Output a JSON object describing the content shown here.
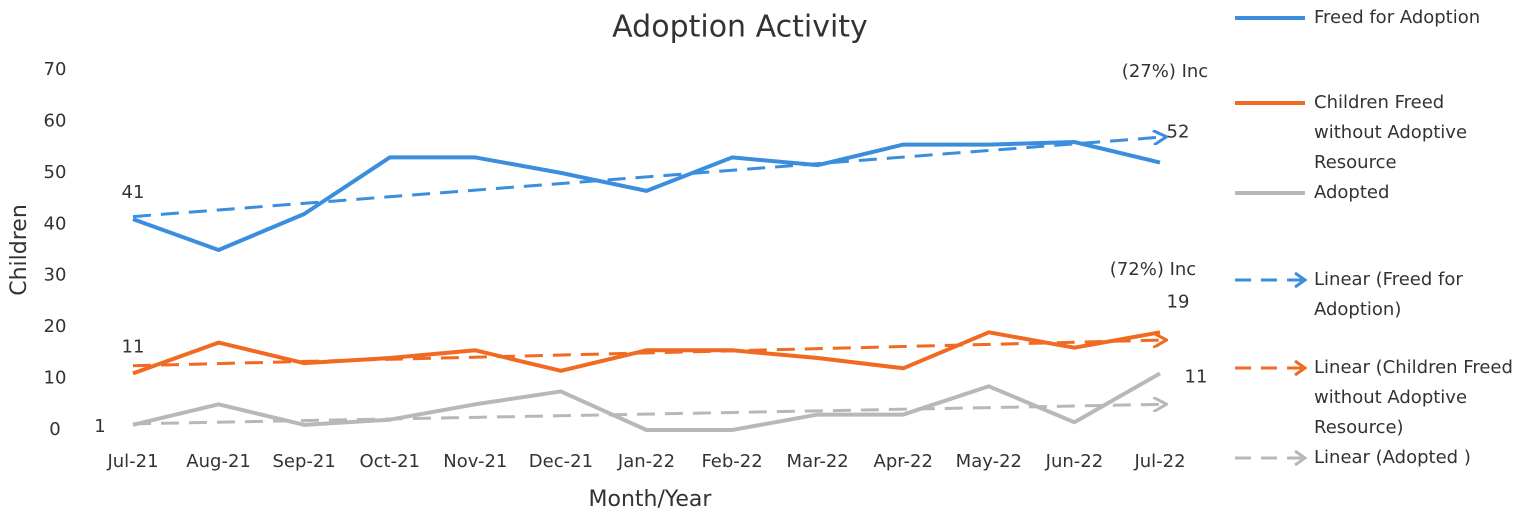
{
  "chart_data": {
    "type": "line",
    "title": "Adoption Activity",
    "x_label": "Month/Year",
    "y_label": "Children",
    "categories": [
      "Jul-21",
      "Aug-21",
      "Sep-21",
      "Oct-21",
      "Nov-21",
      "Dec-21",
      "Jan-22",
      "Feb-22",
      "Mar-22",
      "Apr-22",
      "May-22",
      "Jun-22",
      "Jul-22"
    ],
    "ylim": [
      0,
      70
    ],
    "yticks": [
      0,
      10,
      20,
      30,
      40,
      50,
      60,
      70
    ],
    "series": [
      {
        "name": "Freed for Adoption",
        "color": "#3b8ede",
        "values": [
          41,
          35,
          42,
          53,
          53,
          50,
          46.5,
          53,
          51.5,
          55.5,
          55.5,
          56,
          52
        ],
        "value_labels": [
          "41",
          null,
          null,
          null,
          null,
          null,
          null,
          null,
          null,
          null,
          null,
          null,
          "52"
        ]
      },
      {
        "name": "Children Freed without Adoptive Resource",
        "color": "#f06a22",
        "values": [
          11,
          17,
          13,
          14,
          15.5,
          11.5,
          15.5,
          15.5,
          14,
          12,
          19,
          16,
          19
        ],
        "value_labels": [
          "11",
          null,
          null,
          null,
          null,
          null,
          null,
          null,
          null,
          null,
          null,
          null,
          "19"
        ]
      },
      {
        "name": "Adopted",
        "color": "#b8b8b8",
        "values": [
          1,
          5,
          1,
          2,
          5,
          7.5,
          0,
          0,
          3,
          3,
          8.5,
          1.5,
          11
        ],
        "value_labels": [
          "1",
          null,
          null,
          null,
          null,
          null,
          null,
          null,
          null,
          null,
          null,
          null,
          "11"
        ]
      }
    ],
    "trendlines": [
      {
        "name": "Linear (Freed for Adoption)",
        "color": "#3b8ede",
        "start": 41.5,
        "end": 57
      },
      {
        "name": "Linear (Children Freed without Adoptive Resource)",
        "color": "#f06a22",
        "start": 12.5,
        "end": 17.5
      },
      {
        "name": "Linear (Adopted )",
        "color": "#b8b8b8",
        "start": 1.2,
        "end": 5
      }
    ],
    "annotations": [
      "(27%) Inc",
      "(72%) Inc"
    ],
    "legend": "right"
  }
}
